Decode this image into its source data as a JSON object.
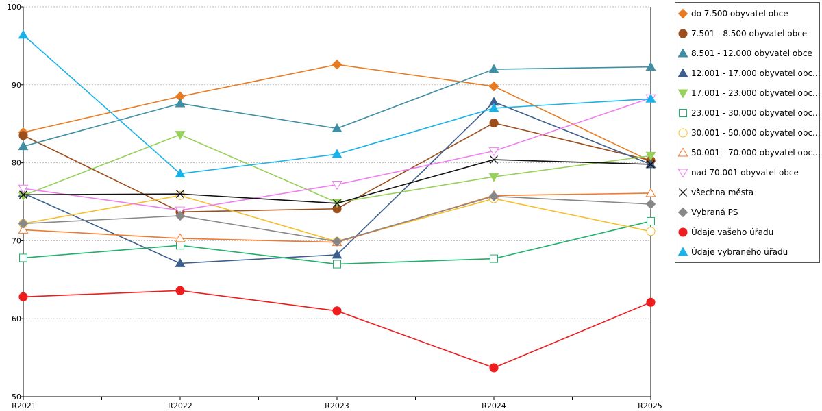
{
  "chart_data": {
    "type": "line",
    "categories": [
      "R2021",
      "R2022",
      "R2023",
      "R2024",
      "R2025"
    ],
    "ylim": [
      50,
      100
    ],
    "yticks": [
      50,
      60,
      70,
      80,
      90,
      100
    ],
    "grid": true,
    "legend_position": "right",
    "series": [
      {
        "name": "do 7.500 obyvatel obce",
        "color": "#e87b22",
        "marker": "diamond",
        "filled": true,
        "values": [
          83.9,
          88.5,
          92.6,
          89.8,
          80.2
        ]
      },
      {
        "name": "7.501 - 8.500 obyvatel obce",
        "color": "#9c4f1c",
        "marker": "circle",
        "filled": true,
        "values": [
          83.5,
          73.7,
          74.1,
          85.1,
          80.3
        ]
      },
      {
        "name": "8.501 - 12.000 obyvatel obce",
        "color": "#3f8ea3",
        "marker": "triangle-up",
        "filled": true,
        "values": [
          82.1,
          87.6,
          84.4,
          92.0,
          92.3
        ]
      },
      {
        "name": "12.001 - 17.000 obyvatel obc...",
        "color": "#3c5f8e",
        "marker": "triangle-up",
        "filled": true,
        "values": [
          76.1,
          67.1,
          68.2,
          87.8,
          79.8
        ]
      },
      {
        "name": "17.001 - 23.000 obyvatel obc...",
        "color": "#97d05a",
        "marker": "triangle-down",
        "filled": true,
        "values": [
          75.8,
          83.6,
          74.9,
          78.2,
          80.9
        ]
      },
      {
        "name": "23.001 - 30.000 obyvatel obc...",
        "color": "#1fb06b",
        "marker": "square",
        "filled": false,
        "values": [
          67.8,
          69.4,
          67.0,
          67.7,
          72.5
        ]
      },
      {
        "name": "30.001 - 50.000 obyvatel obc...",
        "color": "#f7bd2a",
        "marker": "circle",
        "filled": false,
        "values": [
          72.2,
          75.8,
          69.9,
          75.4,
          71.2
        ]
      },
      {
        "name": "50.001 - 70.000 obyvatel obc...",
        "color": "#f07a2e",
        "marker": "triangle-up",
        "filled": false,
        "values": [
          71.4,
          70.3,
          69.8,
          75.8,
          76.1
        ]
      },
      {
        "name": "nad 70.001 obyvatel obce",
        "color": "#ef7ef0",
        "marker": "triangle-down",
        "filled": false,
        "values": [
          76.7,
          73.9,
          77.2,
          81.5,
          88.3
        ]
      },
      {
        "name": "všechna města",
        "color": "#111111",
        "marker": "x",
        "filled": false,
        "values": [
          75.9,
          76.0,
          74.8,
          80.4,
          79.8
        ]
      },
      {
        "name": "Vybraná PS",
        "color": "#888888",
        "marker": "diamond",
        "filled": true,
        "values": [
          72.2,
          73.2,
          69.9,
          75.7,
          74.7
        ]
      },
      {
        "name": "Údaje vašeho úřadu",
        "color": "#ee1c1c",
        "marker": "circle",
        "filled": true,
        "values": [
          62.8,
          63.6,
          61.0,
          53.7,
          62.1
        ]
      },
      {
        "name": "Údaje vybraného úřadu",
        "color": "#19b2e8",
        "marker": "triangle-up",
        "filled": true,
        "values": [
          96.4,
          78.6,
          81.1,
          87.0,
          88.2
        ]
      }
    ]
  }
}
